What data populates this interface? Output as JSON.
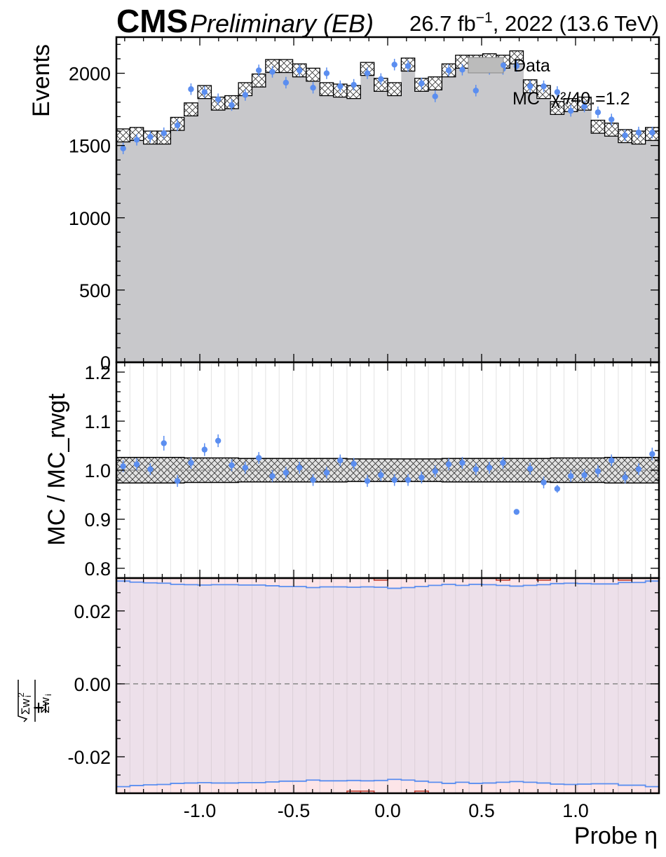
{
  "header": {
    "experiment": "CMS",
    "status": "Preliminary (EB)",
    "lumi_base": "26.7 fb",
    "lumi_exp": "−1",
    "lumi_rest": ", 2022 (13.6 TeV)"
  },
  "legend": {
    "data_label": "Data",
    "mc_label": "MC",
    "chi2_label": "χ²/40.=1.2"
  },
  "colors": {
    "mc_fill": "#c8c8cb",
    "data_marker": "#5b8ef0",
    "unc_line": "#5b8ef0",
    "unc_fill": "#ede0ea",
    "red_line": "#c0392b",
    "grid_line": "#e3e3e3"
  },
  "chart_data": [
    {
      "type": "bar",
      "panel": "main",
      "xlabel": "Probe η",
      "ylabel": "Events",
      "xlim": [
        -1.4442,
        1.4442
      ],
      "ylim": [
        0,
        2250
      ],
      "yticks": [
        0,
        500,
        1000,
        1500,
        2000
      ],
      "xticks": [
        -1.0,
        -0.5,
        0.0,
        0.5,
        1.0
      ],
      "xtick_labels": [
        "-1.0",
        "-0.5",
        "0.0",
        "0.5",
        "1.0"
      ],
      "bin_edges": [
        -1.4442,
        -1.372,
        -1.2998,
        -1.2275,
        -1.1553,
        -1.0831,
        -1.0109,
        -0.9387,
        -0.8665,
        -0.7943,
        -0.7221,
        -0.6499,
        -0.5777,
        -0.5055,
        -0.4333,
        -0.3611,
        -0.2888,
        -0.2166,
        -0.1444,
        -0.0722,
        0.0,
        0.0722,
        0.1444,
        0.2166,
        0.2888,
        0.3611,
        0.4333,
        0.5055,
        0.5777,
        0.6499,
        0.7221,
        0.7943,
        0.8665,
        0.9387,
        1.0109,
        1.0831,
        1.1553,
        1.2275,
        1.2998,
        1.372,
        1.4442
      ],
      "series": [
        {
          "name": "MC",
          "values": [
            1570,
            1580,
            1555,
            1555,
            1650,
            1750,
            1870,
            1790,
            1800,
            1890,
            1950,
            2050,
            2050,
            2020,
            1990,
            1890,
            1880,
            1870,
            2030,
            1920,
            1890,
            2060,
            1920,
            1930,
            2020,
            2080,
            2080,
            2090,
            2080,
            2110,
            1910,
            1870,
            1760,
            1780,
            1790,
            1630,
            1610,
            1565,
            1555,
            1580
          ],
          "uncertainty": [
            45,
            45,
            45,
            45,
            45,
            45,
            45,
            45,
            45,
            45,
            45,
            45,
            45,
            45,
            45,
            45,
            45,
            45,
            45,
            45,
            45,
            45,
            45,
            45,
            45,
            45,
            45,
            45,
            45,
            45,
            45,
            45,
            45,
            45,
            45,
            45,
            45,
            45,
            45,
            45
          ]
        },
        {
          "name": "Data",
          "values": [
            1480,
            1540,
            1560,
            1585,
            1640,
            1890,
            1870,
            1820,
            1780,
            1850,
            2020,
            2010,
            1935,
            2020,
            1900,
            2000,
            1910,
            1920,
            2000,
            1960,
            2060,
            2050,
            1930,
            1840,
            2020,
            2025,
            1880,
            2030,
            2030,
            2050,
            1910,
            1910,
            1870,
            1740,
            1770,
            1730,
            1680,
            1570,
            1590,
            1590
          ],
          "errors": [
            40,
            40,
            40,
            40,
            40,
            40,
            40,
            40,
            40,
            40,
            40,
            40,
            40,
            40,
            40,
            40,
            40,
            40,
            40,
            40,
            40,
            40,
            40,
            40,
            40,
            40,
            40,
            40,
            40,
            40,
            40,
            40,
            40,
            40,
            40,
            40,
            40,
            40,
            40,
            40
          ]
        }
      ]
    },
    {
      "type": "scatter",
      "panel": "ratio",
      "ylabel": "MC / MC_rwgt",
      "ylim": [
        0.78,
        1.22
      ],
      "yticks": [
        0.8,
        0.9,
        1.0,
        1.1,
        1.2
      ],
      "ytick_labels": [
        "0.8",
        "0.9",
        "1.0",
        "1.1",
        "1.2"
      ],
      "band_halfwidth": [
        0.026,
        0.026,
        0.026,
        0.026,
        0.026,
        0.025,
        0.025,
        0.025,
        0.025,
        0.024,
        0.024,
        0.024,
        0.024,
        0.024,
        0.024,
        0.024,
        0.024,
        0.023,
        0.023,
        0.023,
        0.023,
        0.023,
        0.023,
        0.023,
        0.024,
        0.024,
        0.024,
        0.024,
        0.024,
        0.024,
        0.024,
        0.024,
        0.025,
        0.025,
        0.025,
        0.025,
        0.026,
        0.026,
        0.026,
        0.026
      ],
      "series": [
        {
          "name": "Data",
          "values": [
            1.008,
            1.012,
            1.002,
            1.055,
            0.978,
            1.015,
            1.042,
            1.06,
            1.01,
            1.005,
            1.025,
            0.988,
            0.995,
            1.005,
            0.98,
            0.995,
            1.02,
            1.013,
            0.978,
            0.99,
            0.98,
            0.98,
            0.985,
            0.998,
            1.012,
            1.015,
            1.002,
            1.005,
            1.015,
            0.915,
            1.003,
            0.975,
            0.962,
            0.988,
            0.99,
            0.998,
            1.02,
            0.985,
            1.002,
            1.033
          ],
          "errors": [
            0.012,
            0.012,
            0.012,
            0.015,
            0.012,
            0.012,
            0.013,
            0.013,
            0.012,
            0.012,
            0.012,
            0.012,
            0.012,
            0.012,
            0.012,
            0.012,
            0.012,
            0.012,
            0.012,
            0.012,
            0.012,
            0.012,
            0.012,
            0.012,
            0.012,
            0.012,
            0.012,
            0.012,
            0.012,
            0.005,
            0.012,
            0.012,
            0.008,
            0.012,
            0.012,
            0.012,
            0.012,
            0.012,
            0.012,
            0.013
          ]
        }
      ]
    },
    {
      "type": "line",
      "panel": "uncertainty",
      "ylabel_prefix": "±",
      "ylim": [
        -0.03,
        0.029
      ],
      "yticks": [
        -0.02,
        0.0,
        0.02
      ],
      "ytick_labels": [
        "-0.02",
        "0.00",
        "0.02"
      ],
      "series": [
        {
          "name": "",
          "values": [
            0.0282,
            0.0279,
            0.0277,
            0.0276,
            0.0273,
            0.0272,
            0.0271,
            0.0272,
            0.0272,
            0.0271,
            0.0271,
            0.0269,
            0.0267,
            0.0267,
            0.0264,
            0.0266,
            0.0266,
            0.0265,
            0.0266,
            0.0265,
            0.0262,
            0.0264,
            0.0267,
            0.027,
            0.0273,
            0.027,
            0.0273,
            0.0272,
            0.027,
            0.0268,
            0.027,
            0.0272,
            0.0275,
            0.0276,
            0.0275,
            0.0274,
            0.0274,
            0.0278,
            0.0278,
            0.0282
          ]
        }
      ]
    }
  ]
}
